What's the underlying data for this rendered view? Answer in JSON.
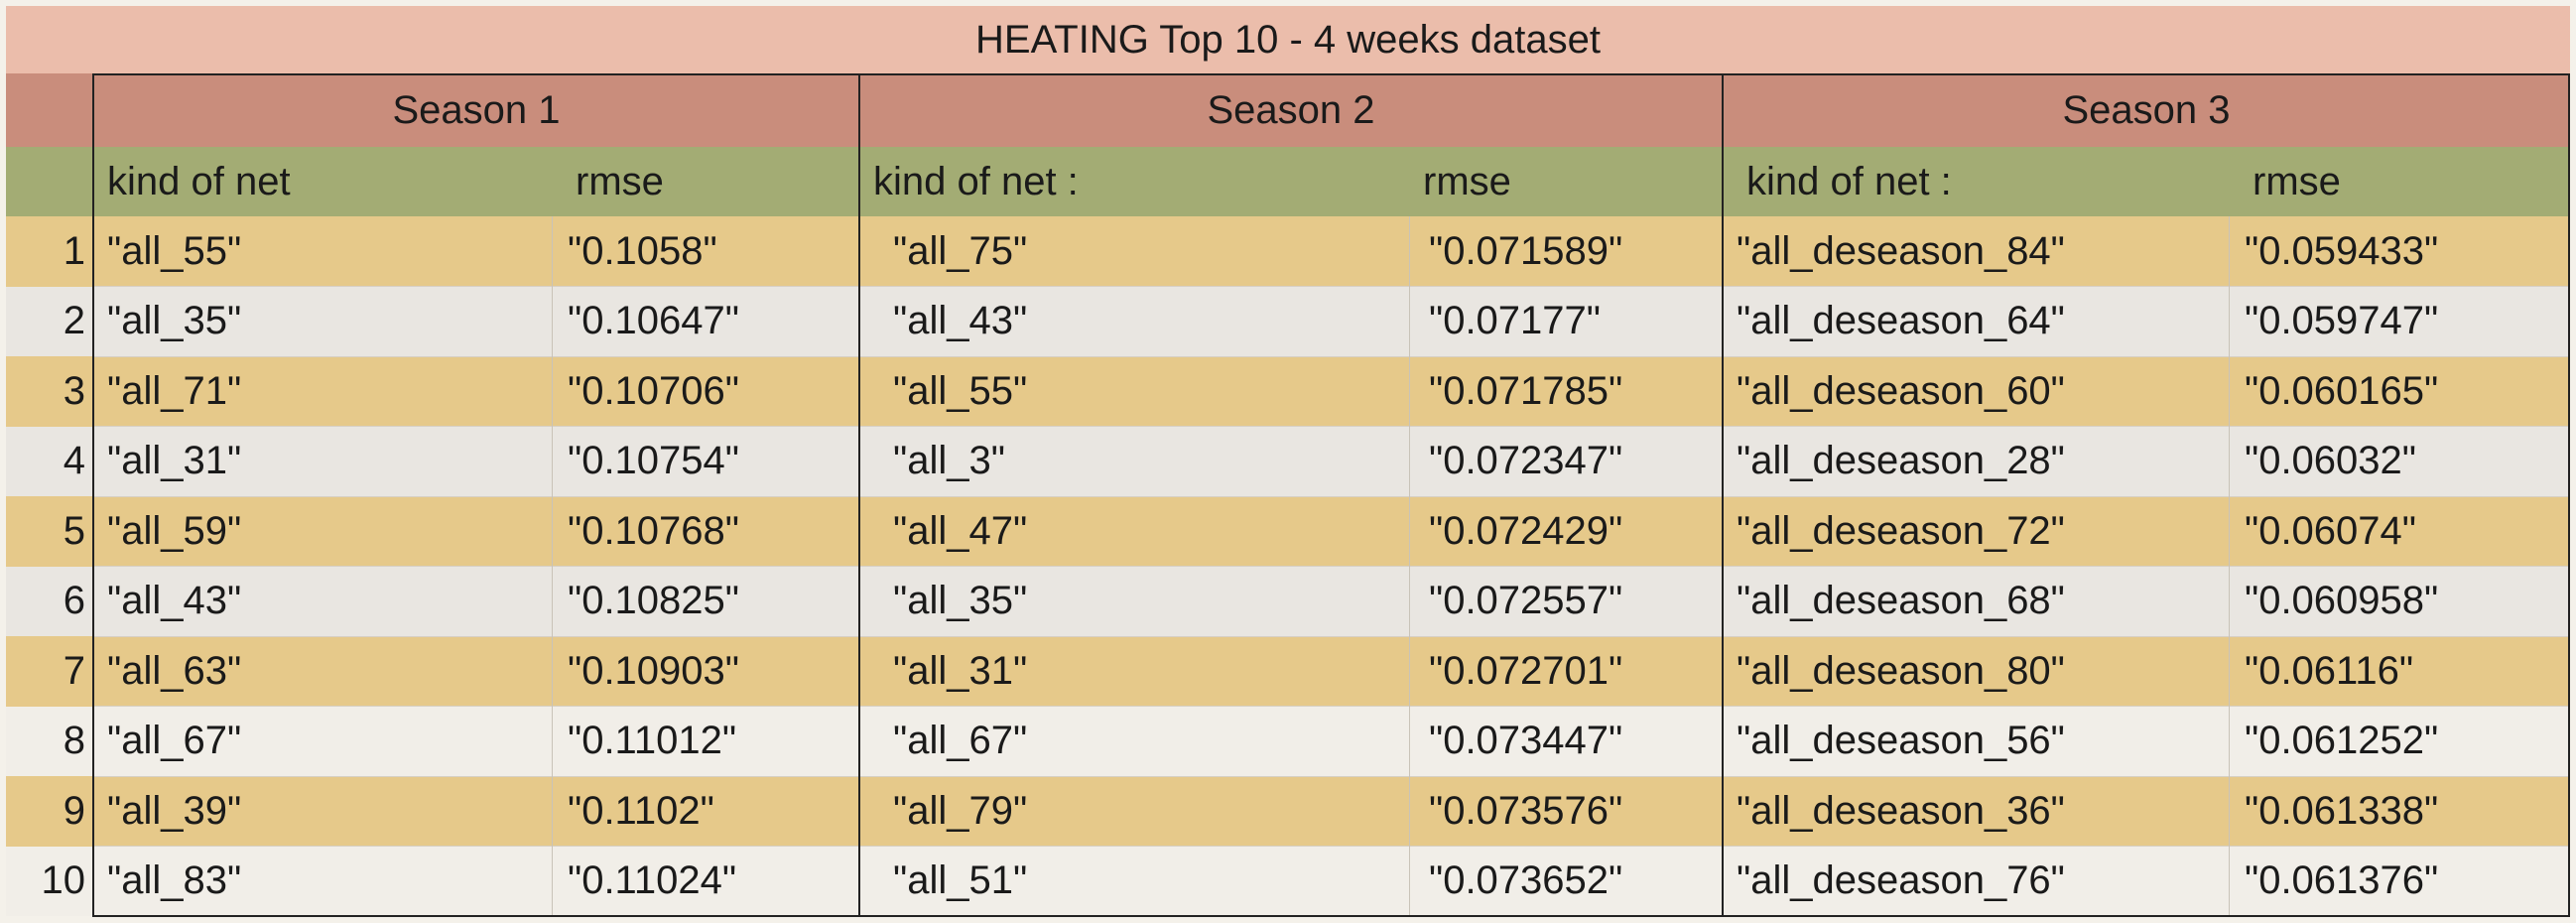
{
  "title": "HEATING Top 10 - 4 weeks dataset",
  "seasons": [
    {
      "label": "Season 1",
      "col_net": "kind of net",
      "col_rmse": "rmse"
    },
    {
      "label": "Season 2",
      "col_net": "kind of net :",
      "col_rmse": "rmse"
    },
    {
      "label": "Season 3",
      "col_net": "kind of net :",
      "col_rmse": "rmse"
    }
  ],
  "rows": [
    {
      "n": "1",
      "s1_net": "\"all_55\"",
      "s1_rmse": "\"0.1058\"",
      "s2_net": "\"all_75\"",
      "s2_rmse": "\"0.071589\"",
      "s3_net": "\"all_deseason_84\"",
      "s3_rmse": "\"0.059433\""
    },
    {
      "n": "2",
      "s1_net": "\"all_35\"",
      "s1_rmse": "\"0.10647\"",
      "s2_net": "\"all_43\"",
      "s2_rmse": "\"0.07177\"",
      "s3_net": "\"all_deseason_64\"",
      "s3_rmse": "\"0.059747\""
    },
    {
      "n": "3",
      "s1_net": "\"all_71\"",
      "s1_rmse": "\"0.10706\"",
      "s2_net": "\"all_55\"",
      "s2_rmse": "\"0.071785\"",
      "s3_net": "\"all_deseason_60\"",
      "s3_rmse": "\"0.060165\""
    },
    {
      "n": "4",
      "s1_net": "\"all_31\"",
      "s1_rmse": "\"0.10754\"",
      "s2_net": "\"all_3\"",
      "s2_rmse": "\"0.072347\"",
      "s3_net": "\"all_deseason_28\"",
      "s3_rmse": "\"0.06032\""
    },
    {
      "n": "5",
      "s1_net": "\"all_59\"",
      "s1_rmse": "\"0.10768\"",
      "s2_net": "\"all_47\"",
      "s2_rmse": "\"0.072429\"",
      "s3_net": "\"all_deseason_72\"",
      "s3_rmse": "\"0.06074\""
    },
    {
      "n": "6",
      "s1_net": "\"all_43\"",
      "s1_rmse": "\"0.10825\"",
      "s2_net": "\"all_35\"",
      "s2_rmse": "\"0.072557\"",
      "s3_net": "\"all_deseason_68\"",
      "s3_rmse": "\"0.060958\""
    },
    {
      "n": "7",
      "s1_net": "\"all_63\"",
      "s1_rmse": "\"0.10903\"",
      "s2_net": "\"all_31\"",
      "s2_rmse": "\"0.072701\"",
      "s3_net": "\"all_deseason_80\"",
      "s3_rmse": "\"0.06116\""
    },
    {
      "n": "8",
      "s1_net": "\"all_67\"",
      "s1_rmse": "\"0.11012\"",
      "s2_net": "\"all_67\"",
      "s2_rmse": "\"0.073447\"",
      "s3_net": "\"all_deseason_56\"",
      "s3_rmse": "\"0.061252\""
    },
    {
      "n": "9",
      "s1_net": "\"all_39\"",
      "s1_rmse": "\"0.1102\"",
      "s2_net": "\"all_79\"",
      "s2_rmse": "\"0.073576\"",
      "s3_net": "\"all_deseason_36\"",
      "s3_rmse": "\"0.061338\""
    },
    {
      "n": "10",
      "s1_net": "\"all_83\"",
      "s1_rmse": "\"0.11024\"",
      "s2_net": "\"all_51\"",
      "s2_rmse": "\"0.073652\"",
      "s3_net": "\"all_deseason_76\"",
      "s3_rmse": "\"0.061376\""
    }
  ],
  "colors": {
    "title_bg": "#ebbdab",
    "season_header_bg": "#c98d7c",
    "column_header_bg": "#a3ac74",
    "row_highlight_bg": "#e6c98a",
    "row_plain_bg": "#e9e6e1"
  }
}
